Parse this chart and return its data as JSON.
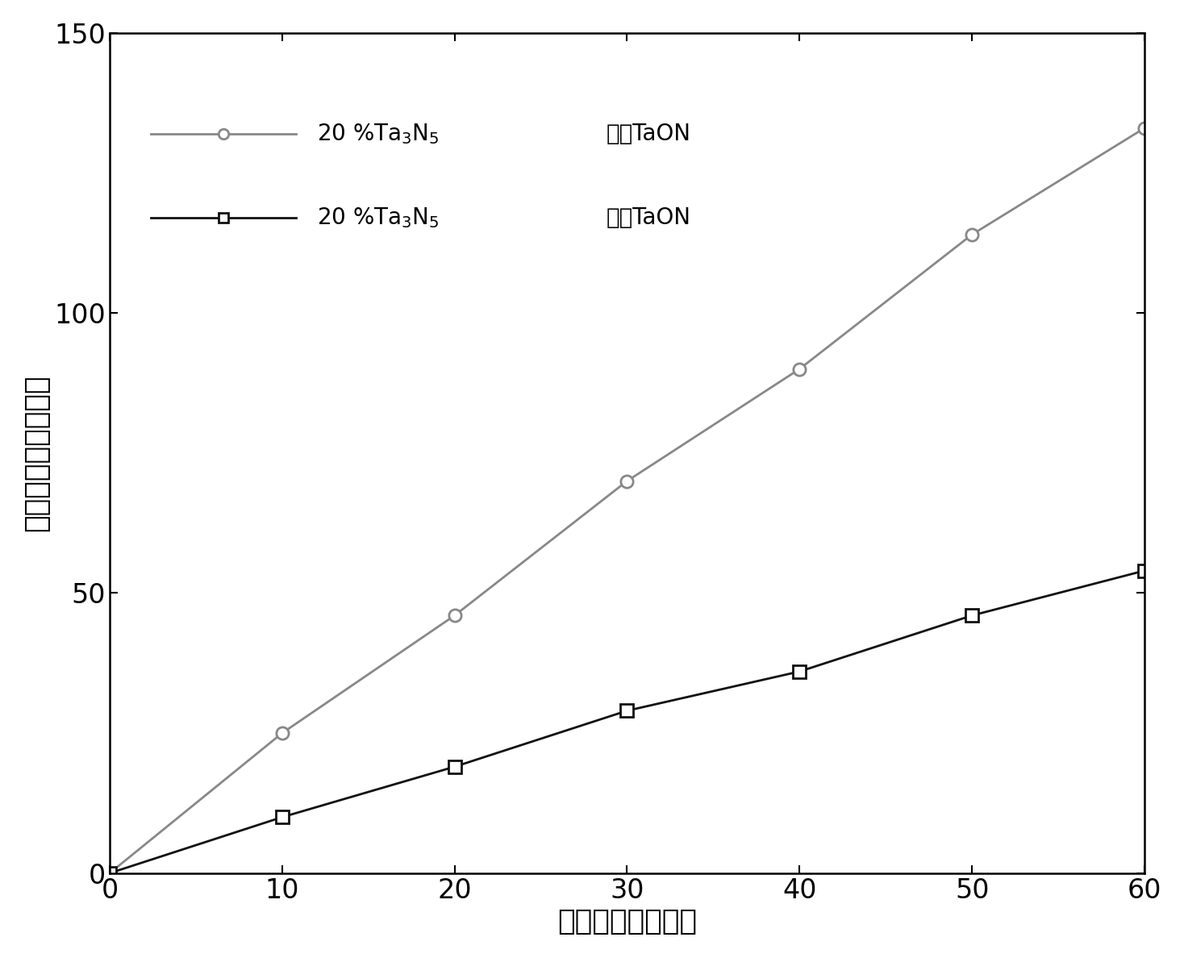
{
  "x": [
    0,
    10,
    20,
    30,
    40,
    50,
    60
  ],
  "series1_y": [
    0,
    25,
    46,
    70,
    90,
    114,
    133
  ],
  "series2_y": [
    0,
    10,
    19,
    29,
    36,
    46,
    54
  ],
  "series1_color": "#888888",
  "series2_color": "#111111",
  "xlabel": "光照时间（分钟）",
  "ylabel": "氧气总量（微摩尔）",
  "xlim": [
    0,
    60
  ],
  "ylim": [
    0,
    150
  ],
  "xticks": [
    0,
    10,
    20,
    30,
    40,
    50,
    60
  ],
  "yticks": [
    0,
    50,
    100,
    150
  ],
  "label_fontsize": 26,
  "tick_fontsize": 24,
  "legend_fontsize": 20,
  "linewidth": 2.0,
  "markersize": 11
}
